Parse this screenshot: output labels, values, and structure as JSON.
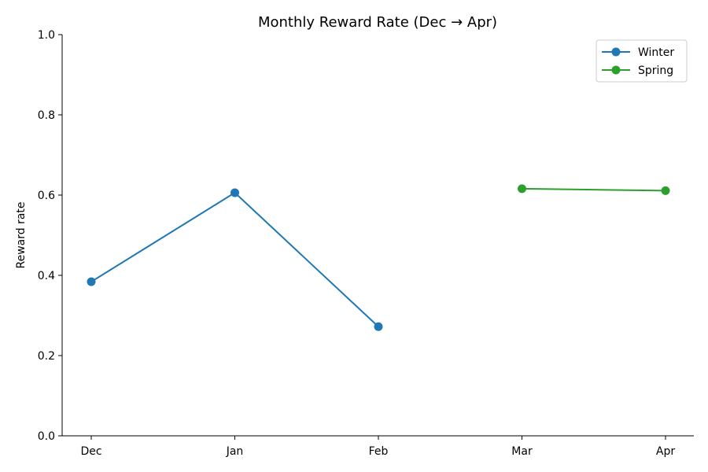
{
  "chart_data": {
    "type": "line",
    "title": "Monthly Reward Rate (Dec → Apr)",
    "xlabel": "",
    "ylabel": "Reward rate",
    "categories": [
      "Dec",
      "Jan",
      "Feb",
      "Mar",
      "Apr"
    ],
    "ylim": [
      0,
      1
    ],
    "yticks": [
      "0.0",
      "0.2",
      "0.4",
      "0.6",
      "0.8",
      "1.0"
    ],
    "grid": false,
    "legend_position": "top-right",
    "series": [
      {
        "name": "Winter",
        "color": "#1f77b4",
        "points": [
          [
            "Dec",
            0.384
          ],
          [
            "Jan",
            0.606
          ],
          [
            "Feb",
            0.272
          ]
        ]
      },
      {
        "name": "Spring",
        "color": "#2ca02c",
        "points": [
          [
            "Mar",
            0.616
          ],
          [
            "Apr",
            0.611
          ]
        ]
      }
    ]
  }
}
